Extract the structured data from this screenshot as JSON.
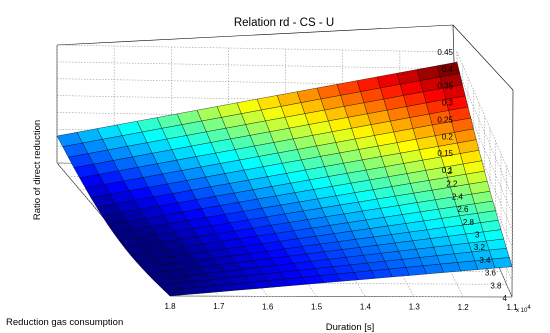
{
  "chart_data": {
    "type": "surface3d",
    "title": "Relation rd - CS - U",
    "xlabel": "Duration [s]",
    "ylabel": "Reduction gas consumption",
    "zlabel": "Ratio of direct reduction",
    "x_multiplier": "x 10",
    "x_multiplier_exponent": "4",
    "x_ticks": [
      "1.1",
      "1.2",
      "1.3",
      "1.4",
      "1.5",
      "1.6",
      "1.7",
      "1.8"
    ],
    "y_ticks": [
      "2",
      "2.2",
      "2.4",
      "2.6",
      "2.8",
      "3",
      "3.2",
      "3.4",
      "3.6",
      "3.8",
      "4"
    ],
    "z_ticks": [
      "0.1",
      "0.15",
      "0.2",
      "0.25",
      "0.3",
      "0.35",
      "0.4",
      "0.45"
    ],
    "xlim": [
      11000,
      18000
    ],
    "ylim": [
      2,
      4
    ],
    "zlim": [
      0.1,
      0.45
    ],
    "colormap": "jet",
    "grid": true,
    "grid_resolution": 20,
    "corner_values": {
      "x1.8_y2": 0.18,
      "x1.1_y2": 0.42,
      "x1.8_y4": 0.1,
      "x1.1_y4": 0.19
    }
  }
}
